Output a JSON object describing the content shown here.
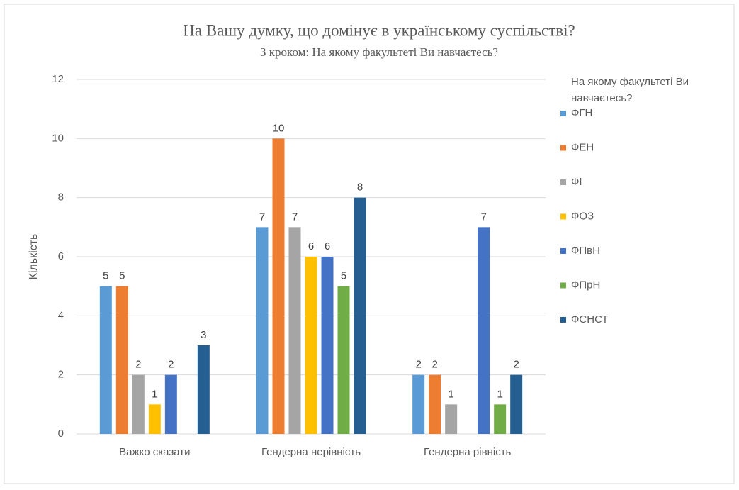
{
  "chart_data": {
    "type": "bar",
    "title": "На Вашу думку, що домінує в українському суспільстві?",
    "subtitle": "З кроком: На якому факультеті Ви навчаєтесь?",
    "y_label": "Кількість",
    "legend_title": "На якому факультеті Ви навчаєтесь?",
    "legend_position": "right",
    "grid": true,
    "categories": [
      "Важко сказати",
      "Гендерна нерівність",
      "Гендерна рівність"
    ],
    "series": [
      {
        "name": "ФГН",
        "color": "#5b9bd5",
        "values": [
          5,
          7,
          2
        ]
      },
      {
        "name": "ФЕН",
        "color": "#ed7d31",
        "values": [
          5,
          10,
          2
        ]
      },
      {
        "name": "ФІ",
        "color": "#a5a5a5",
        "values": [
          2,
          7,
          1
        ]
      },
      {
        "name": "ФОЗ",
        "color": "#ffc000",
        "values": [
          1,
          6,
          null
        ]
      },
      {
        "name": "ФПвН",
        "color": "#4472c4",
        "values": [
          2,
          6,
          7
        ]
      },
      {
        "name": "ФПрН",
        "color": "#70ad47",
        "values": [
          null,
          5,
          1
        ]
      },
      {
        "name": "ФСНСТ",
        "color": "#255e91",
        "values": [
          3,
          8,
          2
        ]
      }
    ],
    "ylim": [
      0,
      12
    ],
    "yticks": [
      0,
      2,
      4,
      6,
      8,
      10,
      12
    ]
  }
}
